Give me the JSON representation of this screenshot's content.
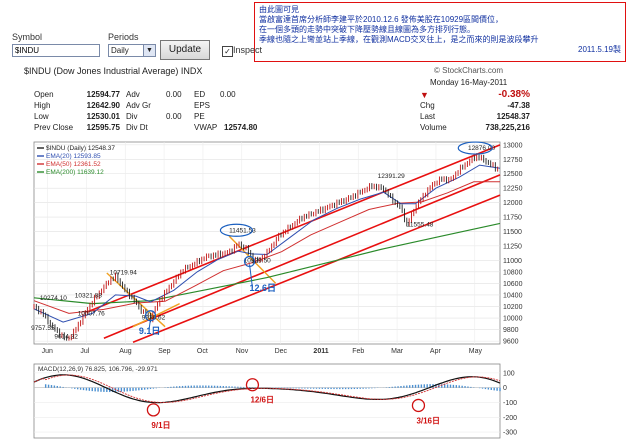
{
  "annotation": {
    "title": "由此圖可見",
    "lines": [
      "當啟富達首席分析師李建平於2010.12.6 發佈美股在10929區間價位，",
      "在一個多頭的走勢中突破下降壓勢線且線圖為多方排列行態。",
      "季線也隨之上彎並站上季線，在觀測MACD交叉往上，是之而來的則是波段攀升"
    ],
    "signature": "2011.5.19製"
  },
  "controls": {
    "symbol_label": "Symbol",
    "symbol_value": "$INDU",
    "periods_label": "Periods",
    "periods_value": "Daily",
    "update_label": "Update",
    "inspect_label": "Inspect"
  },
  "header": {
    "title": "$INDU (Dow Jones Industrial Average) INDX",
    "source": "© StockCharts.com",
    "date": "Monday 16-May-2011"
  },
  "stats": {
    "open_label": "Open",
    "open": "12594.77",
    "high_label": "High",
    "high": "12642.90",
    "low_label": "Low",
    "low": "12530.01",
    "prev_label": "Prev Close",
    "prev": "12595.75",
    "adv_label": "Adv",
    "adv": "0.00",
    "advgr_label": "Adv Gr",
    "div_label": "Div",
    "div": "0.00",
    "divd_label": "Div Dt",
    "ed_label": "ED",
    "ed": "0.00",
    "eps_label": "EPS",
    "pe_label": "PE",
    "vwap_label": "VWAP",
    "vwap": "12574.80",
    "chg_label": "Chg",
    "chg": "-47.38",
    "chgpct": "-0.38%",
    "last_label": "Last",
    "last": "12548.37",
    "volume_label": "Volume",
    "volume": "738,225,216"
  },
  "colors": {
    "annotation_border": "#e01010",
    "annotation_text": "#1030a0",
    "channel": "#e81010",
    "ema20": "#2f4fb0",
    "ema50": "#d03030",
    "ema200": "#2a8a2a",
    "price": "#222222",
    "price_up": "#c01010",
    "pointer": "#f0a020",
    "callout_blue": "#1a5fc0",
    "callout_red": "#d01010",
    "macd_hist": "#4a8fd0"
  },
  "chart_data": [
    {
      "type": "line",
      "legend": [
        "$INDU (Daily) 12548.37",
        "EMA(20) 12593.85",
        "EMA(50) 12361.52",
        "EMA(200) 11639.12"
      ],
      "y_ticks": [
        9600,
        9800,
        10000,
        10200,
        10400,
        10600,
        10800,
        11000,
        11250,
        11500,
        11750,
        12000,
        12250,
        12500,
        12750,
        13000
      ],
      "x_ticks": [
        "Jun",
        "Jul",
        "Aug",
        "Sep",
        "Oct",
        "Nov",
        "Dec",
        "2011",
        "Feb",
        "Mar",
        "Apr",
        "May"
      ],
      "ylim": [
        9550,
        13050
      ],
      "price_points": [
        [
          0,
          10190
        ],
        [
          6,
          10080
        ],
        [
          12,
          9860
        ],
        [
          18,
          9720
        ],
        [
          22,
          9630
        ],
        [
          26,
          9700
        ],
        [
          32,
          9950
        ],
        [
          38,
          10210
        ],
        [
          44,
          10410
        ],
        [
          52,
          10660
        ],
        [
          56,
          10719
        ],
        [
          62,
          10500
        ],
        [
          68,
          10330
        ],
        [
          74,
          10120
        ],
        [
          80,
          9995
        ],
        [
          86,
          10300
        ],
        [
          94,
          10570
        ],
        [
          102,
          10830
        ],
        [
          110,
          10940
        ],
        [
          118,
          11060
        ],
        [
          126,
          11100
        ],
        [
          134,
          11140
        ],
        [
          140,
          11280
        ],
        [
          146,
          11200
        ],
        [
          150,
          11020
        ],
        [
          154,
          10990
        ],
        [
          160,
          11130
        ],
        [
          168,
          11420
        ],
        [
          176,
          11580
        ],
        [
          184,
          11740
        ],
        [
          192,
          11820
        ],
        [
          200,
          11900
        ],
        [
          208,
          11990
        ],
        [
          216,
          12070
        ],
        [
          224,
          12180
        ],
        [
          232,
          12290
        ],
        [
          240,
          12240
        ],
        [
          246,
          12050
        ],
        [
          252,
          11900
        ],
        [
          256,
          11613
        ],
        [
          262,
          11930
        ],
        [
          268,
          12140
        ],
        [
          274,
          12320
        ],
        [
          280,
          12410
        ],
        [
          286,
          12390
        ],
        [
          292,
          12570
        ],
        [
          298,
          12700
        ],
        [
          304,
          12810
        ],
        [
          310,
          12720
        ],
        [
          316,
          12620
        ],
        [
          320,
          12548
        ]
      ],
      "ema20_points": [
        [
          0,
          10160
        ],
        [
          20,
          9930
        ],
        [
          40,
          10080
        ],
        [
          56,
          10400
        ],
        [
          70,
          10380
        ],
        [
          80,
          10280
        ],
        [
          96,
          10480
        ],
        [
          112,
          10800
        ],
        [
          126,
          11010
        ],
        [
          140,
          11160
        ],
        [
          150,
          11110
        ],
        [
          160,
          11100
        ],
        [
          176,
          11400
        ],
        [
          192,
          11700
        ],
        [
          208,
          11900
        ],
        [
          224,
          12060
        ],
        [
          240,
          12180
        ],
        [
          252,
          11980
        ],
        [
          262,
          11980
        ],
        [
          276,
          12250
        ],
        [
          292,
          12440
        ],
        [
          306,
          12650
        ],
        [
          320,
          12594
        ]
      ],
      "ema50_points": [
        [
          0,
          10300
        ],
        [
          24,
          10080
        ],
        [
          48,
          10150
        ],
        [
          70,
          10260
        ],
        [
          90,
          10290
        ],
        [
          110,
          10550
        ],
        [
          130,
          10820
        ],
        [
          150,
          10960
        ],
        [
          170,
          11150
        ],
        [
          190,
          11440
        ],
        [
          210,
          11660
        ],
        [
          230,
          11880
        ],
        [
          250,
          11990
        ],
        [
          266,
          12010
        ],
        [
          284,
          12170
        ],
        [
          302,
          12360
        ],
        [
          320,
          12362
        ]
      ],
      "ema200_points": [
        [
          0,
          10350
        ],
        [
          40,
          10250
        ],
        [
          80,
          10300
        ],
        [
          120,
          10500
        ],
        [
          160,
          10700
        ],
        [
          200,
          10950
        ],
        [
          240,
          11200
        ],
        [
          280,
          11420
        ],
        [
          320,
          11639
        ]
      ],
      "price_labels": [
        {
          "text": "10274.10",
          "x": 4,
          "y": 10274
        },
        {
          "text": "10321.88",
          "x": 28,
          "y": 10321
        },
        {
          "text": "10719.94",
          "x": 52,
          "y": 10719
        },
        {
          "text": "10007.76",
          "x": 30,
          "y": 10007
        },
        {
          "text": "9757.55",
          "x": -2,
          "y": 9757
        },
        {
          "text": "9614.32",
          "x": 14,
          "y": 9614
        },
        {
          "text": "9936.62",
          "x": 74,
          "y": 9936
        },
        {
          "text": "11451.53",
          "x": 134,
          "y": 11451
        },
        {
          "text": "10929.50",
          "x": 144,
          "y": 10929
        },
        {
          "text": "12391.29",
          "x": 236,
          "y": 12391
        },
        {
          "text": "11555.48",
          "x": 256,
          "y": 11555
        },
        {
          "text": "12876.00",
          "x": 298,
          "y": 12876
        }
      ],
      "callouts": [
        {
          "text": "9.1日",
          "x": 72,
          "y": 9720
        },
        {
          "text": "12.6日",
          "x": 148,
          "y": 10470
        }
      ]
    },
    {
      "type": "bar",
      "legend": "MACD(12,26,9) 76.825, 106.796, -29.971",
      "y_ticks": [
        100,
        0,
        -100,
        -200,
        -300
      ],
      "ylim": [
        -340,
        160
      ],
      "callouts": [
        "9/1日",
        "12/6日",
        "3/16日"
      ]
    }
  ]
}
